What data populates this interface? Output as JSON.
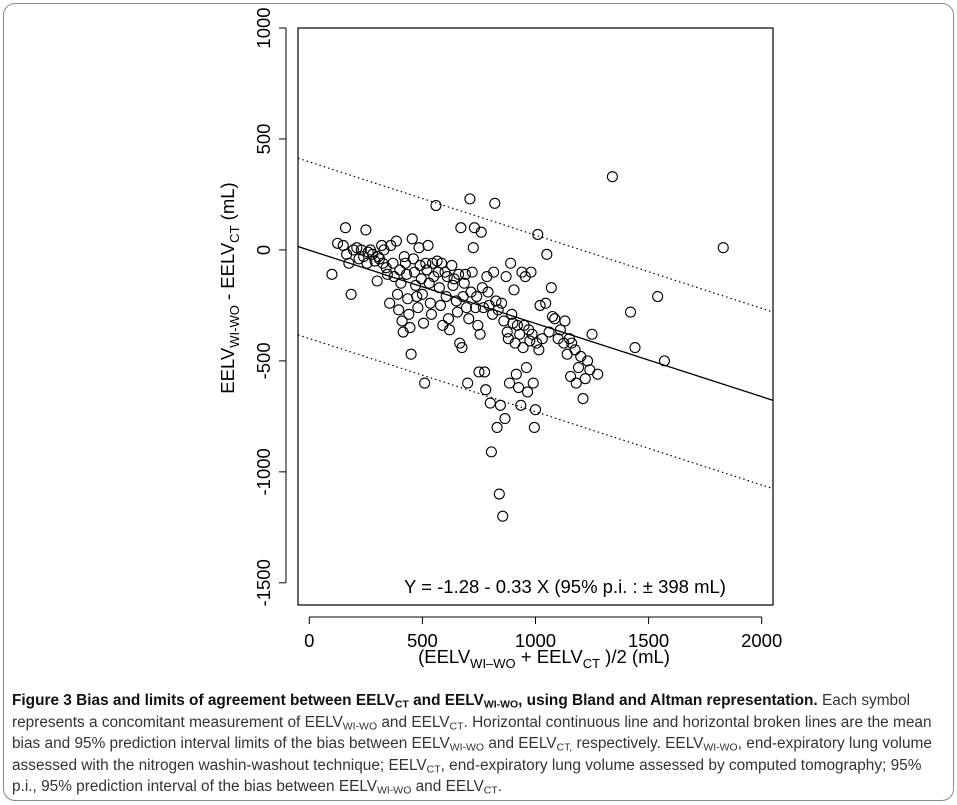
{
  "chart_data": {
    "type": "scatter",
    "title": "",
    "xlabel": "(EELV_{WI–WO} + EELV_{CT})/2 (mL)",
    "ylabel": "EELV_{WI-WO} - EELV_{CT} (mL)",
    "xlim": [
      -50,
      2050
    ],
    "ylim": [
      -1600,
      1000
    ],
    "x_ticks": [
      0,
      500,
      1000,
      1500,
      2000
    ],
    "y_ticks": [
      1000,
      500,
      0,
      -500,
      -1000,
      -1500
    ],
    "grid": false,
    "legend": "none",
    "annotation": "Y = -1.28 - 0.33 X (95% p.i. : ± 398 mL)",
    "regression": {
      "intercept": -1.28,
      "slope": -0.33,
      "pi": 398,
      "style": "solid"
    },
    "prediction_limits": {
      "upper_intercept": 396.72,
      "lower_intercept": -399.28,
      "slope": -0.33,
      "style": "dotted"
    },
    "points": [
      [
        100,
        -110
      ],
      [
        125,
        30
      ],
      [
        150,
        20
      ],
      [
        160,
        100
      ],
      [
        165,
        -20
      ],
      [
        175,
        -60
      ],
      [
        185,
        -200
      ],
      [
        195,
        0
      ],
      [
        210,
        10
      ],
      [
        220,
        -40
      ],
      [
        230,
        0
      ],
      [
        240,
        -30
      ],
      [
        250,
        90
      ],
      [
        255,
        -60
      ],
      [
        260,
        -10
      ],
      [
        270,
        0
      ],
      [
        280,
        -20
      ],
      [
        290,
        -50
      ],
      [
        300,
        -140
      ],
      [
        305,
        -30
      ],
      [
        310,
        -40
      ],
      [
        320,
        20
      ],
      [
        325,
        -60
      ],
      [
        330,
        0
      ],
      [
        340,
        -80
      ],
      [
        345,
        -110
      ],
      [
        355,
        -240
      ],
      [
        360,
        20
      ],
      [
        370,
        -60
      ],
      [
        375,
        -120
      ],
      [
        385,
        40
      ],
      [
        390,
        -200
      ],
      [
        395,
        -270
      ],
      [
        400,
        -90
      ],
      [
        405,
        -150
      ],
      [
        410,
        -320
      ],
      [
        415,
        -370
      ],
      [
        420,
        -30
      ],
      [
        425,
        -60
      ],
      [
        430,
        -110
      ],
      [
        435,
        -220
      ],
      [
        440,
        -290
      ],
      [
        445,
        -350
      ],
      [
        450,
        -470
      ],
      [
        455,
        50
      ],
      [
        460,
        -40
      ],
      [
        465,
        -100
      ],
      [
        470,
        -160
      ],
      [
        475,
        -210
      ],
      [
        480,
        -260
      ],
      [
        485,
        10
      ],
      [
        490,
        -70
      ],
      [
        495,
        -130
      ],
      [
        500,
        -200
      ],
      [
        505,
        -330
      ],
      [
        510,
        -600
      ],
      [
        515,
        -60
      ],
      [
        520,
        -90
      ],
      [
        525,
        20
      ],
      [
        530,
        -150
      ],
      [
        535,
        -240
      ],
      [
        540,
        -290
      ],
      [
        545,
        -60
      ],
      [
        550,
        -120
      ],
      [
        560,
        200
      ],
      [
        565,
        -50
      ],
      [
        570,
        -100
      ],
      [
        575,
        -170
      ],
      [
        580,
        -250
      ],
      [
        585,
        -60
      ],
      [
        590,
        -340
      ],
      [
        600,
        -100
      ],
      [
        605,
        -210
      ],
      [
        610,
        -120
      ],
      [
        615,
        -310
      ],
      [
        620,
        -360
      ],
      [
        630,
        -70
      ],
      [
        635,
        -160
      ],
      [
        640,
        -130
      ],
      [
        650,
        -230
      ],
      [
        655,
        -280
      ],
      [
        660,
        -110
      ],
      [
        665,
        -420
      ],
      [
        670,
        100
      ],
      [
        675,
        -440
      ],
      [
        680,
        -210
      ],
      [
        685,
        -150
      ],
      [
        690,
        -110
      ],
      [
        695,
        -260
      ],
      [
        700,
        -600
      ],
      [
        705,
        -310
      ],
      [
        710,
        230
      ],
      [
        715,
        -190
      ],
      [
        720,
        -100
      ],
      [
        725,
        10
      ],
      [
        730,
        100
      ],
      [
        735,
        -260
      ],
      [
        740,
        -210
      ],
      [
        745,
        -340
      ],
      [
        750,
        -550
      ],
      [
        755,
        -380
      ],
      [
        760,
        80
      ],
      [
        765,
        -170
      ],
      [
        770,
        -260
      ],
      [
        775,
        -550
      ],
      [
        780,
        -630
      ],
      [
        785,
        -120
      ],
      [
        790,
        -190
      ],
      [
        795,
        -250
      ],
      [
        800,
        -690
      ],
      [
        805,
        -910
      ],
      [
        810,
        -290
      ],
      [
        815,
        -100
      ],
      [
        820,
        210
      ],
      [
        825,
        -230
      ],
      [
        830,
        -800
      ],
      [
        835,
        -270
      ],
      [
        840,
        -1100
      ],
      [
        845,
        -700
      ],
      [
        850,
        -240
      ],
      [
        855,
        -1200
      ],
      [
        860,
        -320
      ],
      [
        865,
        -760
      ],
      [
        870,
        -120
      ],
      [
        875,
        -370
      ],
      [
        880,
        -400
      ],
      [
        885,
        -600
      ],
      [
        890,
        -60
      ],
      [
        895,
        -290
      ],
      [
        900,
        -330
      ],
      [
        905,
        -180
      ],
      [
        910,
        -420
      ],
      [
        915,
        -560
      ],
      [
        920,
        -340
      ],
      [
        925,
        -620
      ],
      [
        930,
        -380
      ],
      [
        935,
        -700
      ],
      [
        940,
        -100
      ],
      [
        945,
        -440
      ],
      [
        950,
        -340
      ],
      [
        955,
        -120
      ],
      [
        960,
        -530
      ],
      [
        965,
        -640
      ],
      [
        970,
        -360
      ],
      [
        975,
        -410
      ],
      [
        980,
        -100
      ],
      [
        985,
        -380
      ],
      [
        990,
        -600
      ],
      [
        995,
        -800
      ],
      [
        1000,
        -720
      ],
      [
        1005,
        -420
      ],
      [
        1010,
        70
      ],
      [
        1015,
        -450
      ],
      [
        1020,
        -250
      ],
      [
        1030,
        -400
      ],
      [
        1045,
        -240
      ],
      [
        1050,
        -20
      ],
      [
        1060,
        -370
      ],
      [
        1070,
        -170
      ],
      [
        1075,
        -300
      ],
      [
        1085,
        -310
      ],
      [
        1100,
        -400
      ],
      [
        1110,
        -360
      ],
      [
        1125,
        -420
      ],
      [
        1130,
        -320
      ],
      [
        1140,
        -470
      ],
      [
        1150,
        -400
      ],
      [
        1155,
        -570
      ],
      [
        1160,
        -420
      ],
      [
        1175,
        -450
      ],
      [
        1180,
        -600
      ],
      [
        1190,
        -530
      ],
      [
        1200,
        -480
      ],
      [
        1210,
        -670
      ],
      [
        1220,
        -580
      ],
      [
        1230,
        -500
      ],
      [
        1240,
        -540
      ],
      [
        1250,
        -380
      ],
      [
        1275,
        -560
      ],
      [
        1340,
        330
      ],
      [
        1420,
        -280
      ],
      [
        1440,
        -440
      ],
      [
        1540,
        -210
      ],
      [
        1570,
        -500
      ],
      [
        1830,
        10
      ]
    ]
  },
  "caption": {
    "fig_label": "Figure 3",
    "title_a": " Bias and limits of agreement between EELV",
    "title_sub1": "CT",
    "title_b": " and EELV",
    "title_sub2": "WI-WO",
    "title_c": ", using Bland and Altman representation.",
    "t1": " Each symbol represents a concomitant measurement of EELV",
    "s1": "WI-WO",
    "t2": " and EELV",
    "s2": "CT",
    "t3": ". Horizontal continuous line and horizontal broken lines are the mean bias and 95% prediction interval limits of the bias between EELV",
    "s3": "WI-WO",
    "t4": " and EELV",
    "s4": "CT,",
    "t5": " respectively. EELV",
    "s5": "WI-WO",
    "t6": ", end-expiratory lung volume assessed with the nitrogen washin-washout technique; EELV",
    "s6": "CT",
    "t7": ", end-expiratory lung volume assessed by computed tomography; 95% p.i., 95% prediction interval of the bias between EELV",
    "s7": "WI-WO",
    "t8": " and EELV",
    "s8": "CT",
    "t9": "."
  }
}
